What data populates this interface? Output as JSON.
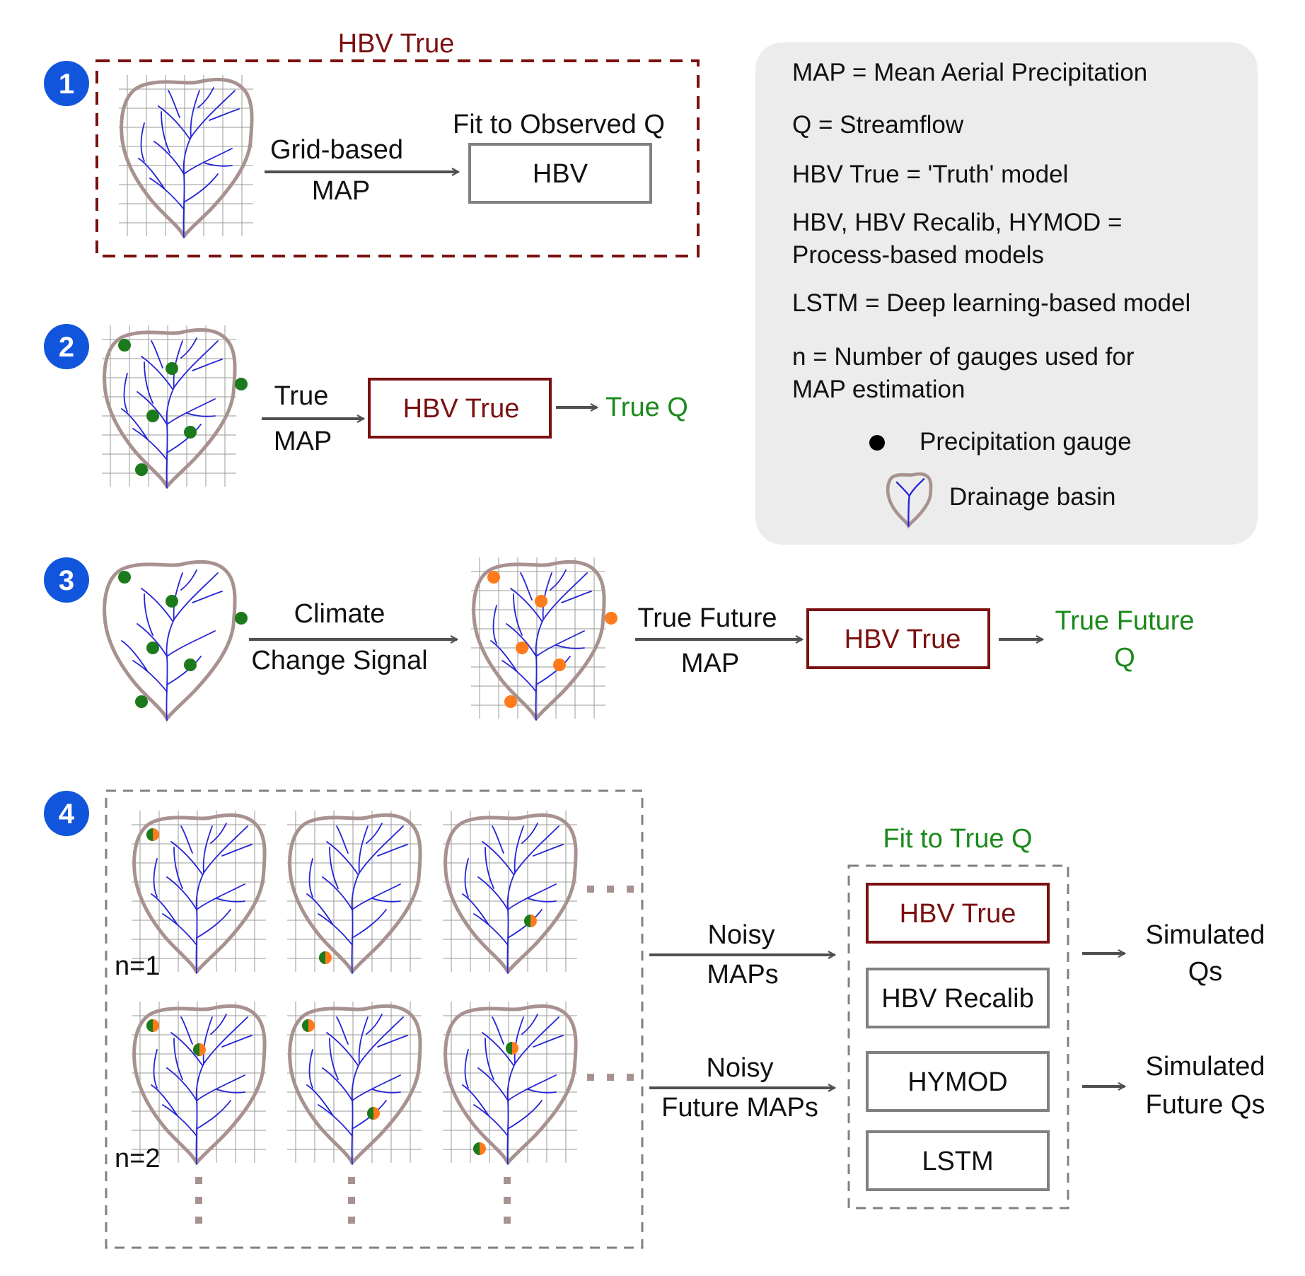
{
  "colors": {
    "dark_red": "#7b1010",
    "green": "#1a8a1a",
    "blue_badge": "#1155dd",
    "gray_box": "#808080",
    "basin_outline": "#a89290",
    "river": "#2424d8",
    "gauge_green": "#1b7a1b",
    "gauge_orange": "#ff7a1a",
    "legend_bg": "#ececec",
    "arrow": "#505050"
  },
  "legend": {
    "line1": "MAP = Mean Aerial Precipitation",
    "line2": "Q = Streamflow",
    "line3": "HBV True = 'Truth' model",
    "line4a": "HBV, HBV Recalib, HYMOD =",
    "line4b": "Process-based models",
    "line5": "LSTM = Deep learning-based model",
    "line6a": "n = Number of gauges used for",
    "line6b": "MAP estimation",
    "gauge_label": "Precipitation gauge",
    "basin_label": "Drainage basin"
  },
  "step1": {
    "badge": "1",
    "frame_title": "HBV True",
    "arrow_top": "Grid-based",
    "arrow_bottom": "MAP",
    "fit_label": "Fit to Observed Q",
    "model": "HBV"
  },
  "step2": {
    "badge": "2",
    "arrow_top": "True",
    "arrow_bottom": "MAP",
    "model": "HBV True",
    "output": "True Q"
  },
  "step3": {
    "badge": "3",
    "arrow1_top": "Climate",
    "arrow1_bottom": "Change Signal",
    "arrow2_top": "True Future",
    "arrow2_bottom": "MAP",
    "model": "HBV True",
    "output_a": "True Future",
    "output_b": "Q"
  },
  "step4": {
    "badge": "4",
    "n1": "n=1",
    "n2": "n=2",
    "arrow1_top": "Noisy",
    "arrow1_bottom": "MAPs",
    "arrow2_top": "Noisy",
    "arrow2_bottom": "Future MAPs",
    "fit_label": "Fit to True Q",
    "models": [
      "HBV True",
      "HBV Recalib",
      "HYMOD",
      "LSTM"
    ],
    "output1_a": "Simulated",
    "output1_b": "Qs",
    "output2_a": "Simulated",
    "output2_b": "Future Qs"
  }
}
